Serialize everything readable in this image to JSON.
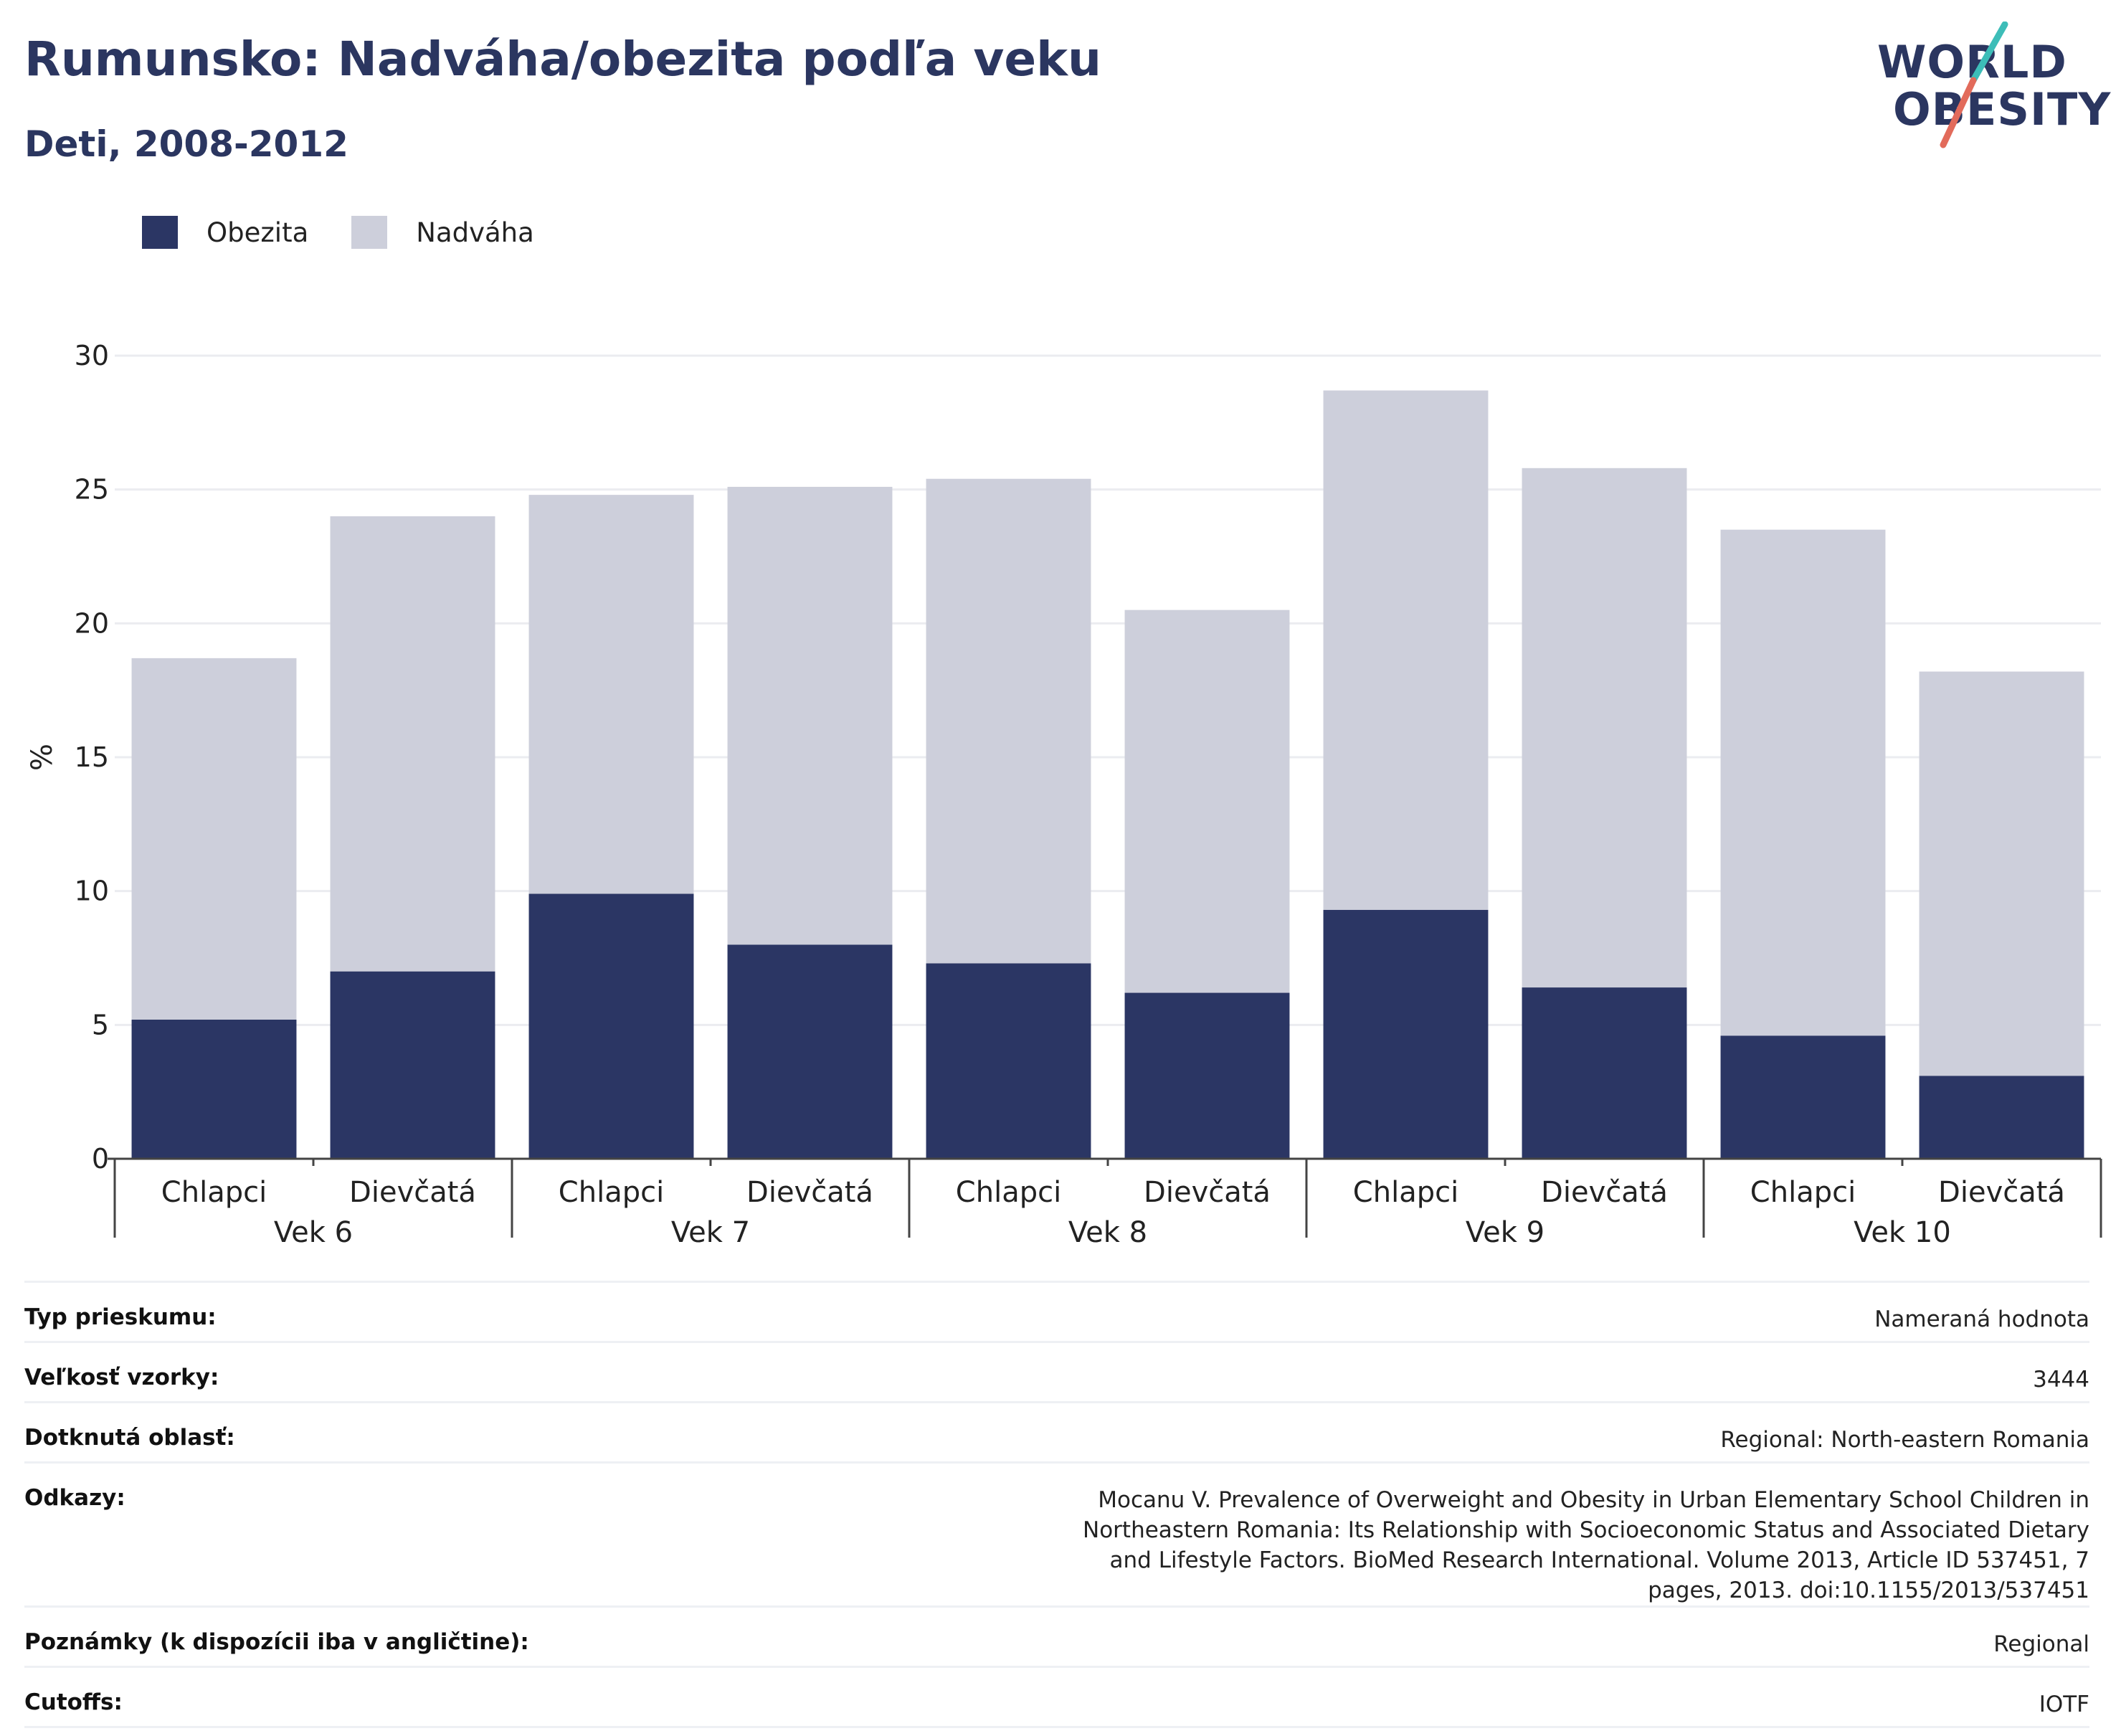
{
  "title": "Rumunsko: Nadváha/obezita podľa veku",
  "subtitle": "Deti, 2008-2012",
  "logo": {
    "line1": "WORLD",
    "line2": "OBESITY",
    "colors": {
      "teal": "#3dbdb8",
      "coral": "#e26b5b"
    }
  },
  "colors": {
    "obesity": "#2b3664",
    "overweight": "#cdcfdb",
    "title": "#2b3660",
    "grid": "#ebecf0"
  },
  "chart_data": {
    "type": "bar",
    "stacked": true,
    "ylabel": "%",
    "ylim": [
      0,
      30
    ],
    "yticks": [
      0,
      5,
      10,
      15,
      20,
      25,
      30
    ],
    "grid": true,
    "legend_position": "top-left",
    "groups": [
      "Vek 6",
      "Vek 7",
      "Vek 8",
      "Vek 9",
      "Vek 10"
    ],
    "categories": [
      "Chlapci",
      "Dievčatá",
      "Chlapci",
      "Dievčatá",
      "Chlapci",
      "Dievčatá",
      "Chlapci",
      "Dievčatá",
      "Chlapci",
      "Dievčatá"
    ],
    "series": [
      {
        "name": "Obezita",
        "values": [
          5.2,
          7.0,
          9.9,
          8.0,
          7.3,
          6.2,
          9.3,
          6.4,
          4.6,
          3.1
        ]
      },
      {
        "name": "Nadváha",
        "values": [
          13.5,
          17.0,
          14.9,
          17.1,
          18.1,
          14.3,
          19.4,
          19.4,
          18.9,
          15.1
        ]
      }
    ]
  },
  "info": [
    {
      "label": "Typ prieskumu:",
      "value": "Nameraná hodnota"
    },
    {
      "label": "Veľkosť vzorky:",
      "value": "3444"
    },
    {
      "label": "Dotknutá oblasť:",
      "value": "Regional: North-eastern Romania"
    },
    {
      "label": "Odkazy:",
      "value": "Mocanu V. Prevalence of Overweight and Obesity in Urban Elementary School Children in Northeastern Romania: Its Relationship with Socioeconomic Status and Associated Dietary and Lifestyle Factors. BioMed Research International. Volume 2013, Article ID 537451, 7 pages, 2013. doi:10.1155/2013/537451"
    },
    {
      "label": "Poznámky (k dispozícii iba v angličtine):",
      "value": "Regional"
    },
    {
      "label": "Cutoffs:",
      "value": "IOTF"
    }
  ]
}
